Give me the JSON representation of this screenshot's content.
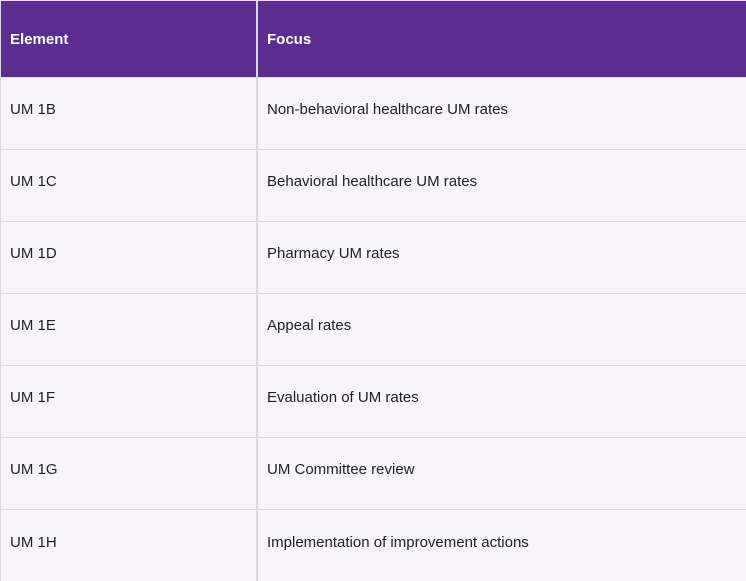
{
  "table": {
    "columns": [
      {
        "label": "Element"
      },
      {
        "label": "Focus"
      }
    ],
    "rows": [
      {
        "element": "UM 1B",
        "focus": "Non-behavioral healthcare UM rates"
      },
      {
        "element": "UM 1C",
        "focus": "Behavioral healthcare UM rates"
      },
      {
        "element": "UM 1D",
        "focus": "Pharmacy UM rates"
      },
      {
        "element": "UM 1E",
        "focus": "Appeal rates"
      },
      {
        "element": "UM 1F",
        "focus": "Evaluation of UM rates"
      },
      {
        "element": "UM 1G",
        "focus": "UM Committee review"
      },
      {
        "element": "UM 1H",
        "focus": "Implementation of improvement actions"
      }
    ]
  },
  "colors": {
    "header_bg": "#5b2d90",
    "header_text": "#ffffff",
    "row_bg": "#f7f5fa",
    "border": "#dcd9e1",
    "body_text": "#1f1f1f"
  }
}
